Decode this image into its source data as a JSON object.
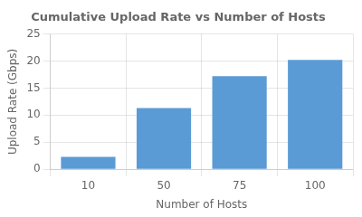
{
  "chart_data": {
    "type": "bar",
    "title": "Cumulative Upload Rate vs Number of Hosts",
    "xlabel": "Number of Hosts",
    "ylabel": "Upload Rate (Gbps)",
    "categories": [
      "10",
      "50",
      "75",
      "100"
    ],
    "values": [
      2.3,
      11.3,
      17.2,
      20.2
    ],
    "color": "#5B9BD5",
    "ylim": [
      0,
      25
    ],
    "yticks": [
      0,
      5,
      10,
      15,
      20,
      25
    ],
    "grid": true
  }
}
